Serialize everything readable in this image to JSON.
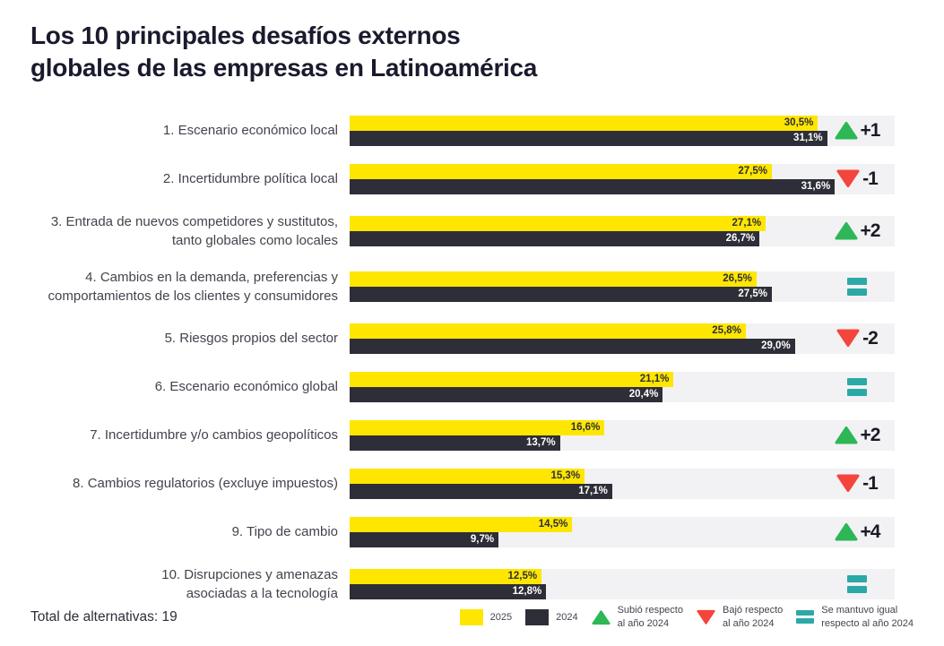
{
  "title": {
    "line1": "Los 10 principales desafíos externos",
    "line2": "globales de las empresas en Latinoamérica"
  },
  "footer": {
    "total_label": "Total de alternativas: 19"
  },
  "legend": {
    "position": "bottom",
    "items": [
      {
        "type": "swatch-2025",
        "label": "2025"
      },
      {
        "type": "swatch-2024",
        "label": "2024"
      },
      {
        "type": "up",
        "label": "Subió respecto\nal año 2024"
      },
      {
        "type": "down",
        "label": "Bajó respecto\nal año 2024"
      },
      {
        "type": "same",
        "label": "Se mantuvo igual\nrespecto al año 2024"
      }
    ]
  },
  "colors": {
    "bar_2025": "#FFE600",
    "bar_2024": "#2E2E38",
    "up_green": "#2DB757",
    "down_red": "#F4453C",
    "same_teal": "#2BA9A6",
    "track_gray": "#F2F2F4",
    "title_text": "#1A1A2E"
  },
  "chart_data": {
    "type": "bar",
    "orientation": "horizontal",
    "title": "Los 10 principales desafíos externos globales de las empresas en Latinoamérica",
    "xlabel": "",
    "ylabel": "",
    "unit": "%",
    "decimal_separator": ",",
    "xlim": [
      0,
      35.5
    ],
    "grid": false,
    "legend_position": "bottom",
    "categories": [
      [
        "1. Escenario económico local"
      ],
      [
        "2. Incertidumbre política local"
      ],
      [
        "3. Entrada de nuevos competidores y sustitutos,",
        "tanto globales como locales"
      ],
      [
        "4. Cambios en la demanda, preferencias y",
        "comportamientos de los clientes y consumidores"
      ],
      [
        "5. Riesgos propios del sector"
      ],
      [
        "6. Escenario económico global"
      ],
      [
        "7. Incertidumbre y/o cambios geopolíticos"
      ],
      [
        "8. Cambios regulatorios (excluye impuestos)"
      ],
      [
        "9. Tipo de cambio"
      ],
      [
        "10. Disrupciones y amenazas",
        "asociadas a la tecnología"
      ]
    ],
    "series": [
      {
        "name": "2025",
        "values": [
          30.5,
          27.5,
          27.1,
          26.5,
          25.8,
          21.1,
          16.6,
          15.3,
          14.5,
          12.5
        ]
      },
      {
        "name": "2024",
        "values": [
          31.1,
          31.6,
          26.7,
          27.5,
          29.0,
          20.4,
          13.7,
          17.1,
          9.7,
          12.8
        ]
      }
    ],
    "changes": [
      {
        "direction": "up",
        "label": "+1"
      },
      {
        "direction": "down",
        "label": "-1"
      },
      {
        "direction": "up",
        "label": "+2"
      },
      {
        "direction": "same",
        "label": ""
      },
      {
        "direction": "down",
        "label": "-2"
      },
      {
        "direction": "same",
        "label": ""
      },
      {
        "direction": "up",
        "label": "+2"
      },
      {
        "direction": "down",
        "label": "-1"
      },
      {
        "direction": "up",
        "label": "+4"
      },
      {
        "direction": "same",
        "label": ""
      }
    ]
  }
}
